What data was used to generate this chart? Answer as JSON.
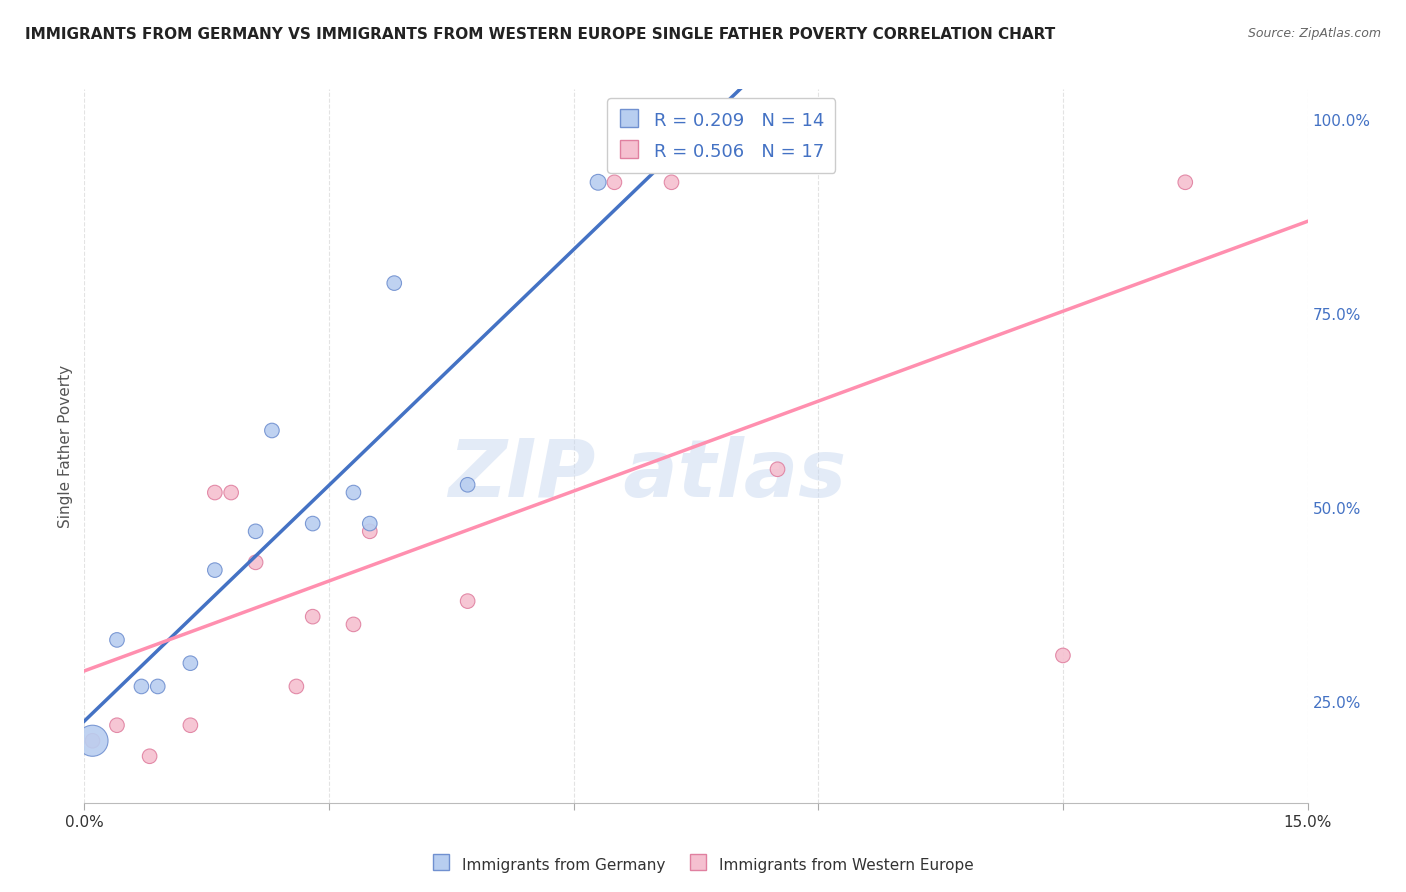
{
  "title": "IMMIGRANTS FROM GERMANY VS IMMIGRANTS FROM WESTERN EUROPE SINGLE FATHER POVERTY CORRELATION CHART",
  "source": "Source: ZipAtlas.com",
  "xlabel_blue": "Immigrants from Germany",
  "xlabel_pink": "Immigrants from Western Europe",
  "ylabel": "Single Father Poverty",
  "xlim": [
    0.0,
    0.15
  ],
  "ylim": [
    0.12,
    1.04
  ],
  "xticks": [
    0.0,
    0.03,
    0.06,
    0.09,
    0.12,
    0.15
  ],
  "xtick_labels": [
    "0.0%",
    "",
    "",
    "",
    "",
    "15.0%"
  ],
  "yticks_right": [
    0.25,
    0.5,
    0.75,
    1.0
  ],
  "ytick_labels_right": [
    "25.0%",
    "50.0%",
    "75.0%",
    "100.0%"
  ],
  "blue_R": 0.209,
  "blue_N": 14,
  "pink_R": 0.506,
  "pink_N": 17,
  "blue_scatter": {
    "x": [
      0.001,
      0.004,
      0.007,
      0.009,
      0.013,
      0.016,
      0.021,
      0.023,
      0.028,
      0.033,
      0.035,
      0.038,
      0.047,
      0.063
    ],
    "y": [
      0.2,
      0.33,
      0.27,
      0.27,
      0.3,
      0.42,
      0.47,
      0.6,
      0.48,
      0.52,
      0.48,
      0.79,
      0.53,
      0.92
    ],
    "sizes": [
      500,
      110,
      110,
      110,
      110,
      110,
      110,
      110,
      110,
      110,
      110,
      110,
      110,
      130
    ]
  },
  "pink_scatter": {
    "x": [
      0.001,
      0.004,
      0.008,
      0.013,
      0.016,
      0.018,
      0.021,
      0.026,
      0.028,
      0.033,
      0.035,
      0.047,
      0.065,
      0.072,
      0.085,
      0.12,
      0.135
    ],
    "y": [
      0.2,
      0.22,
      0.18,
      0.22,
      0.52,
      0.52,
      0.43,
      0.27,
      0.36,
      0.35,
      0.47,
      0.38,
      0.92,
      0.92,
      0.55,
      0.31,
      0.92
    ],
    "sizes": [
      110,
      110,
      110,
      110,
      110,
      110,
      110,
      110,
      110,
      110,
      110,
      110,
      110,
      110,
      110,
      110,
      110
    ]
  },
  "blue_color": "#b8cef0",
  "pink_color": "#f5c0d0",
  "blue_line_color": "#4472C4",
  "pink_line_color": "#FF8FAF",
  "blue_edge_color": "#7090d0",
  "pink_edge_color": "#e080a0",
  "watermark_text": "ZIP atlas",
  "watermark_color": "#c8d8f0",
  "background_color": "#ffffff",
  "grid_color": "#e0e0e0",
  "title_color": "#222222",
  "source_color": "#666666",
  "axis_label_color": "#555555",
  "tick_color": "#4472C4"
}
